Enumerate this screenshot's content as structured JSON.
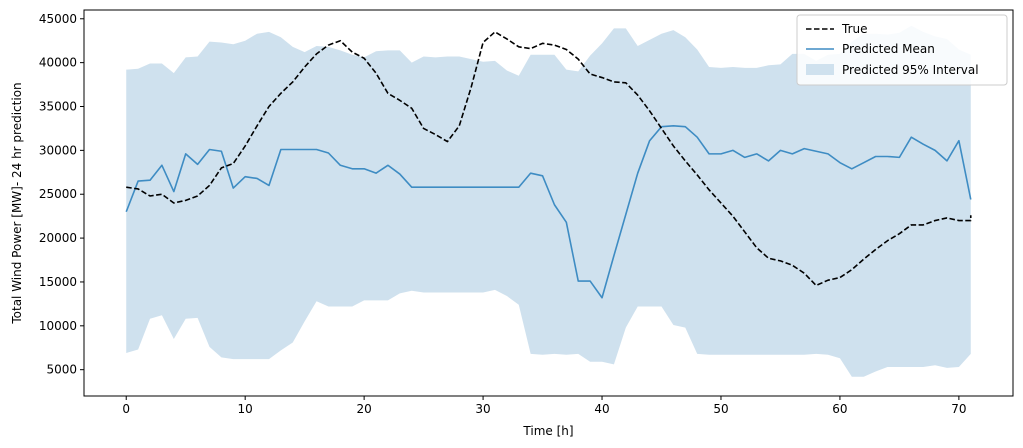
{
  "chart_data": {
    "type": "line",
    "title": "",
    "xlabel": "Time [h]",
    "ylabel": "Total Wind Power [MW]- 24 hr prediction",
    "xlim": [
      -3.55,
      74.55
    ],
    "ylim": [
      2000,
      46000
    ],
    "xticks": [
      0,
      10,
      20,
      30,
      40,
      50,
      60,
      70
    ],
    "yticks": [
      5000,
      10000,
      15000,
      20000,
      25000,
      30000,
      35000,
      40000,
      45000
    ],
    "grid": false,
    "legend_position": "top-right",
    "colors": {
      "true": "#000000",
      "mean": "#3e8cc3",
      "interval": "#cfe1ee",
      "axes": "#000000"
    },
    "x": [
      0,
      1,
      2,
      3,
      4,
      5,
      6,
      7,
      8,
      9,
      10,
      11,
      12,
      13,
      14,
      15,
      16,
      17,
      18,
      19,
      20,
      21,
      22,
      23,
      24,
      25,
      26,
      27,
      28,
      29,
      30,
      31,
      32,
      33,
      34,
      35,
      36,
      37,
      38,
      39,
      40,
      41,
      42,
      43,
      44,
      45,
      46,
      47,
      48,
      49,
      50,
      51,
      52,
      53,
      54,
      55,
      56,
      57,
      58,
      59,
      60,
      61,
      62,
      63,
      64,
      65,
      66,
      67,
      68,
      69,
      70,
      71
    ],
    "series": [
      {
        "name": "True",
        "style": "dashed",
        "values": [
          25800,
          25600,
          24800,
          25000,
          24000,
          24300,
          24800,
          26000,
          28000,
          28500,
          30500,
          32800,
          35000,
          36500,
          37800,
          39500,
          41000,
          42000,
          42500,
          41200,
          40500,
          38800,
          36500,
          35700,
          34800,
          32500,
          31800,
          31000,
          32800,
          37200,
          42300,
          43500,
          42700,
          41800,
          41600,
          42200,
          42000,
          41500,
          40400,
          38700,
          38300,
          37800,
          37700,
          36300,
          34500,
          32500,
          30500,
          28800,
          27200,
          25500,
          24000,
          22500,
          20700,
          18900,
          17700,
          17400,
          16900,
          16000,
          14600,
          15200,
          15500,
          16400,
          17600,
          18700,
          19700,
          20500,
          21500,
          21500,
          22000,
          22300,
          22000,
          22000
        ],
        "extra_point": [
          71,
          22600
        ]
      },
      {
        "name": "Predicted Mean",
        "style": "solid",
        "values": [
          23000,
          26500,
          26600,
          28300,
          25300,
          29600,
          28400,
          30100,
          29900,
          25700,
          27000,
          26800,
          26000,
          30100,
          30100,
          30100,
          30100,
          29700,
          28300,
          27900,
          27900,
          27400,
          28300,
          27300,
          25800,
          25800,
          25800,
          25800,
          25800,
          25800,
          25800,
          25800,
          25800,
          25800,
          27400,
          27100,
          23800,
          21800,
          15100,
          15100,
          13200,
          18000,
          22700,
          27400,
          31100,
          32700,
          32800,
          32700,
          31500,
          29600,
          29600,
          30000,
          29200,
          29600,
          28800,
          30000,
          29600,
          30200,
          29900,
          29600,
          28600,
          27900,
          28600,
          29300,
          29300,
          29200,
          31500,
          30700,
          30000,
          28800,
          31100,
          24400
        ]
      },
      {
        "name": "Predicted 95% Interval",
        "type": "band",
        "upper": [
          39200,
          39300,
          39900,
          39900,
          38800,
          40600,
          40700,
          42400,
          42300,
          42100,
          42500,
          43300,
          43500,
          42900,
          41800,
          41200,
          41900,
          41800,
          41400,
          40900,
          40600,
          41300,
          41400,
          41400,
          40000,
          40700,
          40600,
          40700,
          40700,
          40400,
          40100,
          40200,
          39100,
          38500,
          40900,
          40900,
          40900,
          39200,
          39000,
          40800,
          42200,
          43900,
          43900,
          41900,
          42600,
          43300,
          43700,
          42900,
          41500,
          39500,
          39400,
          39500,
          39400,
          39400,
          39700,
          39800,
          41000,
          41000,
          40200,
          40900,
          41000,
          42400,
          43300,
          43300,
          43200,
          43400,
          44200,
          43500,
          43000,
          42700,
          41500,
          40900
        ],
        "lower": [
          6900,
          7300,
          10800,
          11200,
          8500,
          10800,
          10900,
          7600,
          6400,
          6200,
          6200,
          6200,
          6200,
          7200,
          8100,
          10500,
          12800,
          12200,
          12200,
          12200,
          12900,
          12900,
          12900,
          13700,
          14000,
          13800,
          13800,
          13800,
          13800,
          13800,
          13800,
          14100,
          13400,
          12400,
          6800,
          6700,
          6800,
          6700,
          6800,
          5900,
          5900,
          5600,
          9800,
          12200,
          12200,
          12200,
          10100,
          9800,
          6800,
          6700,
          6700,
          6700,
          6700,
          6700,
          6700,
          6700,
          6700,
          6700,
          6800,
          6700,
          6300,
          4200,
          4200,
          4800,
          5300,
          5300,
          5300,
          5300,
          5500,
          5200,
          5300,
          6800
        ]
      }
    ]
  }
}
